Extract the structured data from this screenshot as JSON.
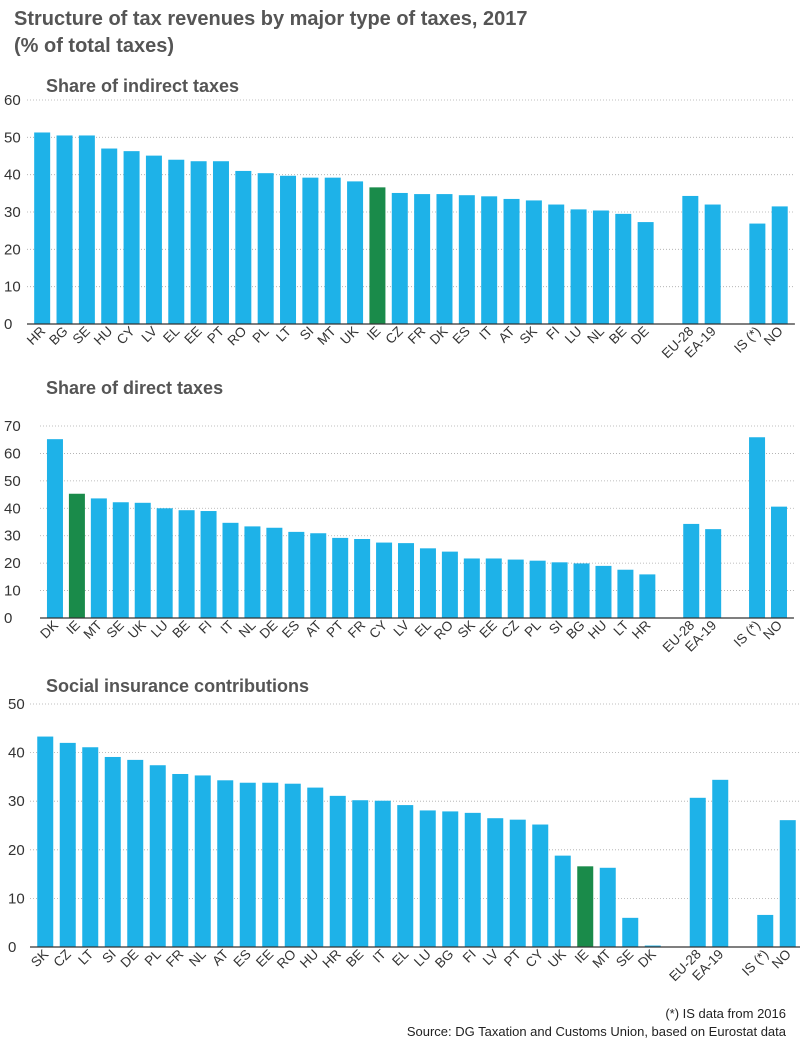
{
  "title_line1": "Structure of tax revenues by major type of taxes, 2017",
  "title_line2": "(% of total taxes)",
  "footnote": "(*) IS data from 2016",
  "source": "Source: DG Taxation and Customs Union, based on Eurostat data",
  "colors": {
    "bar": "#1EB2E8",
    "highlight": "#1A8B4A",
    "axis": "#333333",
    "grid": "#aaaaaa"
  },
  "chart_data": [
    {
      "type": "bar",
      "title": "Share of indirect taxes",
      "yticks": [
        0,
        10,
        20,
        30,
        40,
        50,
        60
      ],
      "ylim": [
        0,
        60
      ],
      "highlight": "IE",
      "categories": [
        "HR",
        "BG",
        "SE",
        "HU",
        "CY",
        "LV",
        "EL",
        "EE",
        "PT",
        "RO",
        "PL",
        "LT",
        "SI",
        "MT",
        "UK",
        "IE",
        "CZ",
        "FR",
        "DK",
        "ES",
        "IT",
        "AT",
        "SK",
        "FI",
        "LU",
        "NL",
        "BE",
        "DE",
        "",
        "EU-28",
        "EA-19",
        "",
        "IS (*)",
        "NO"
      ],
      "values": [
        51.3,
        50.5,
        50.5,
        47.0,
        46.3,
        45.1,
        44.0,
        43.6,
        43.6,
        41.0,
        40.4,
        39.7,
        39.2,
        39.2,
        38.2,
        36.6,
        35.1,
        34.8,
        34.8,
        34.5,
        34.2,
        33.5,
        33.1,
        32.0,
        30.7,
        30.4,
        29.5,
        27.3,
        null,
        34.3,
        32.0,
        null,
        26.9,
        31.5
      ]
    },
    {
      "type": "bar",
      "title": "Share of direct taxes",
      "yticks": [
        0,
        10,
        20,
        30,
        40,
        50,
        60,
        70
      ],
      "ylim": [
        0,
        70
      ],
      "highlight": "IE",
      "categories": [
        "DK",
        "IE",
        "MT",
        "SE",
        "UK",
        "LU",
        "BE",
        "FI",
        "IT",
        "NL",
        "DE",
        "ES",
        "AT",
        "PT",
        "FR",
        "CY",
        "LV",
        "EL",
        "RO",
        "SK",
        "EE",
        "CZ",
        "PL",
        "SI",
        "BG",
        "HU",
        "LT",
        "HR",
        "",
        "EU-28",
        "EA-19",
        "",
        "IS (*)",
        "NO"
      ],
      "values": [
        65.2,
        45.3,
        43.6,
        42.2,
        42.0,
        40.0,
        39.3,
        39.0,
        34.7,
        33.4,
        32.9,
        31.4,
        30.9,
        29.2,
        28.8,
        27.5,
        27.3,
        25.4,
        24.2,
        21.7,
        21.7,
        21.3,
        20.9,
        20.3,
        19.9,
        19.0,
        17.6,
        15.9,
        null,
        34.3,
        32.4,
        null,
        65.9,
        40.6
      ]
    },
    {
      "type": "bar",
      "title": "Social insurance contributions",
      "yticks": [
        0,
        10,
        20,
        30,
        40,
        50
      ],
      "ylim": [
        0,
        50
      ],
      "highlight": "IE",
      "categories": [
        "SK",
        "CZ",
        "LT",
        "SI",
        "DE",
        "PL",
        "FR",
        "NL",
        "AT",
        "ES",
        "EE",
        "RO",
        "HU",
        "HR",
        "BE",
        "IT",
        "EL",
        "LU",
        "BG",
        "FI",
        "LV",
        "PT",
        "CY",
        "UK",
        "IE",
        "MT",
        "SE",
        "DK",
        "",
        "EU-28",
        "EA-19",
        "",
        "IS (*)",
        "NO"
      ],
      "values": [
        43.3,
        42.0,
        41.1,
        39.1,
        38.5,
        37.4,
        35.6,
        35.3,
        34.3,
        33.8,
        33.8,
        33.6,
        32.8,
        31.1,
        30.2,
        30.1,
        29.2,
        28.1,
        27.9,
        27.6,
        26.5,
        26.2,
        25.2,
        18.8,
        16.6,
        16.3,
        6.0,
        0.3,
        null,
        30.7,
        34.4,
        null,
        6.6,
        26.1
      ]
    }
  ]
}
